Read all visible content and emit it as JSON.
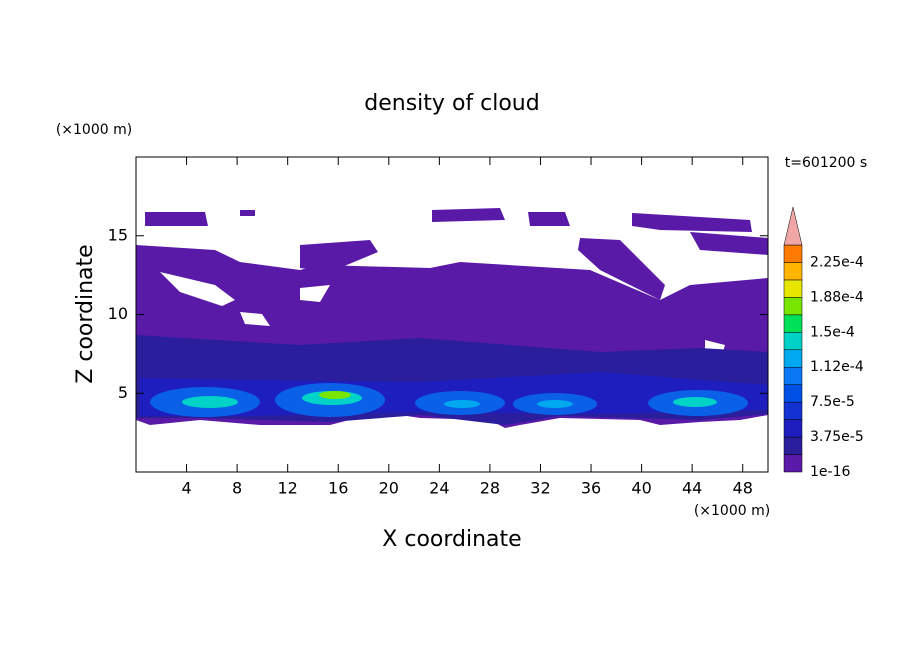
{
  "chart_data": {
    "type": "contour",
    "title": "density of cloud",
    "time_label": "t=601200 s",
    "x_label": "X coordinate",
    "y_label": "Z coordinate",
    "x_unit": "(×1000 m)",
    "y_unit": "(×1000 m)",
    "xlim": [
      0,
      50
    ],
    "ylim": [
      0,
      20
    ],
    "xticks": [
      4,
      8,
      12,
      16,
      20,
      24,
      28,
      32,
      36,
      40,
      44,
      48
    ],
    "yticks": [
      5,
      10,
      15
    ],
    "colorbar": {
      "levels": [
        1e-16,
        1.875e-05,
        3.75e-05,
        5.625e-05,
        7.5e-05,
        9.375e-05,
        0.0001125,
        0.00013125,
        0.00015,
        0.00016875,
        0.0001875,
        0.00020625,
        0.000225,
        0.00024375
      ],
      "colors": [
        "#5a1aa8",
        "#2a1e9c",
        "#1e1ebe",
        "#1432d2",
        "#0050e6",
        "#0a78f5",
        "#00a8f0",
        "#00d2c8",
        "#00e15a",
        "#78e600",
        "#e6e600",
        "#ffb400",
        "#ff7a00",
        "#ff3c14"
      ],
      "over_color": "#f0a6a6",
      "ticks": [
        {
          "value": 1e-16,
          "label": "1e-16"
        },
        {
          "value": 3.75e-05,
          "label": "3.75e-5"
        },
        {
          "value": 7.5e-05,
          "label": "7.5e-5"
        },
        {
          "value": 0.0001125,
          "label": "1.12e-4"
        },
        {
          "value": 0.00015,
          "label": "1.5e-4"
        },
        {
          "value": 0.0001875,
          "label": "1.88e-4"
        },
        {
          "value": 0.000225,
          "label": "2.25e-4"
        }
      ]
    }
  }
}
